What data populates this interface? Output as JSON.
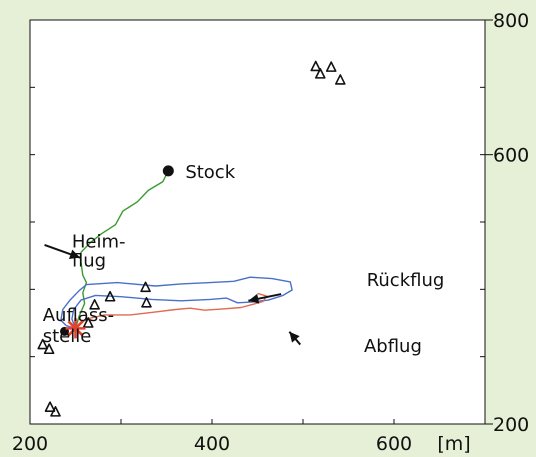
{
  "chart_data": {
    "type": "line",
    "title": "",
    "xlabel": "",
    "ylabel": "",
    "x_unit_label": "[m]",
    "xlim": [
      200,
      700
    ],
    "ylim": [
      200,
      800
    ],
    "x_ticks": [
      200,
      400,
      600
    ],
    "y_ticks": [
      200,
      600,
      800
    ],
    "grid": false,
    "legend": "none",
    "background_color": "#e6f0d6",
    "plot_color": "#ffffff",
    "series": [
      {
        "color": "#3a9a2e",
        "points": [
          [
            352,
            576
          ],
          [
            346,
            560
          ],
          [
            330,
            547
          ],
          [
            318,
            530
          ],
          [
            302,
            516
          ],
          [
            294,
            496
          ],
          [
            278,
            482
          ],
          [
            266,
            469
          ],
          [
            256,
            455
          ],
          [
            256,
            440
          ],
          [
            258,
            421
          ],
          [
            262,
            410
          ],
          [
            258,
            395
          ],
          [
            260,
            379
          ],
          [
            254,
            360
          ],
          [
            250,
            342
          ]
        ]
      },
      {
        "color": "#4a70c8",
        "points": [
          [
            250,
            342
          ],
          [
            240,
            346
          ],
          [
            234,
            354
          ],
          [
            236,
            370
          ],
          [
            244,
            384
          ],
          [
            254,
            398
          ],
          [
            262,
            407
          ],
          [
            296,
            410
          ],
          [
            338,
            405
          ],
          [
            366,
            408
          ],
          [
            398,
            410
          ],
          [
            424,
            412
          ],
          [
            442,
            418
          ],
          [
            466,
            416
          ],
          [
            486,
            411
          ],
          [
            488,
            399
          ],
          [
            478,
            391
          ],
          [
            462,
            384
          ],
          [
            443,
            381
          ],
          [
            428,
            380
          ],
          [
            416,
            387
          ],
          [
            398,
            385
          ],
          [
            366,
            383
          ],
          [
            334,
            385
          ],
          [
            300,
            389
          ],
          [
            272,
            391
          ],
          [
            256,
            384
          ],
          [
            248,
            370
          ],
          [
            246,
            356
          ],
          [
            250,
            342
          ]
        ]
      },
      {
        "color": "#e06a52",
        "points": [
          [
            250,
            342
          ],
          [
            262,
            356
          ],
          [
            282,
            362
          ],
          [
            310,
            362
          ],
          [
            336,
            366
          ],
          [
            360,
            370
          ],
          [
            376,
            372
          ],
          [
            392,
            369
          ],
          [
            412,
            371
          ],
          [
            432,
            373
          ],
          [
            446,
            378
          ],
          [
            456,
            382
          ],
          [
            460,
            390
          ],
          [
            450,
            394
          ]
        ]
      }
    ],
    "markers": {
      "stock": {
        "label": "Stock",
        "x": 352,
        "y": 576,
        "color": "#111111"
      },
      "release": {
        "x": 250,
        "y": 342,
        "color": "#e6402a"
      },
      "triangles": [
        [
          514,
          731
        ],
        [
          519,
          720
        ],
        [
          531,
          730
        ],
        [
          541,
          711
        ],
        [
          327,
          403
        ],
        [
          328,
          380
        ],
        [
          271,
          377
        ],
        [
          288,
          389
        ],
        [
          264,
          350
        ],
        [
          214,
          318
        ],
        [
          221,
          311
        ],
        [
          222,
          225
        ],
        [
          228,
          218
        ]
      ]
    },
    "annotations": [
      {
        "text": "Heim-",
        "x": 246,
        "y": 462
      },
      {
        "text": "flug",
        "x": 246,
        "y": 434
      },
      {
        "text": "Rückflug",
        "x": 570,
        "y": 405
      },
      {
        "text": "Auflass-",
        "x": 214,
        "y": 353
      },
      {
        "text": "stelle",
        "x": 214,
        "y": 322
      },
      {
        "text": "Abflug",
        "x": 567,
        "y": 307
      }
    ],
    "arrows": [
      {
        "from": [
          216,
          466
        ],
        "to": [
          255,
          447
        ]
      },
      {
        "from": [
          476,
          393
        ],
        "to": [
          440,
          383
        ]
      },
      {
        "from": [
          497,
          318
        ],
        "to": [
          485,
          337
        ]
      }
    ]
  }
}
